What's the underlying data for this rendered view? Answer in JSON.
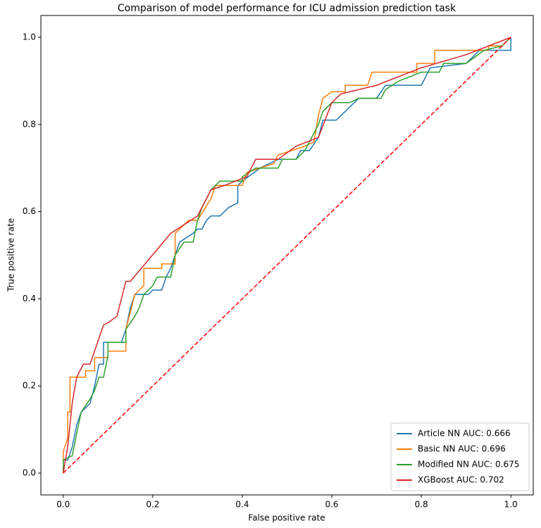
{
  "chart_data": {
    "type": "line",
    "title": "Comparison of model performance for ICU admission prediction task",
    "x_label": "False positive rate",
    "y_label": "True positive rate",
    "xlim": [
      -0.05,
      1.05
    ],
    "ylim": [
      -0.05,
      1.05
    ],
    "xticks": [
      {
        "value": 0,
        "label": "0.0"
      },
      0.2,
      0.4,
      0.6,
      0.8,
      {
        "value": 1,
        "label": "1.0"
      }
    ],
    "yticks": [
      {
        "value": 0,
        "label": "0.0"
      },
      0.2,
      0.4,
      0.6,
      0.8,
      {
        "value": 1,
        "label": "1.0"
      }
    ],
    "legend": "lower right",
    "series": [
      {
        "name": "Article NN AUC: 0.666",
        "color": "#1f77b4",
        "x": [
          0,
          0,
          0.01,
          0.02,
          0.03,
          0.04,
          0.06,
          0.07,
          0.08,
          0.09,
          0.09,
          0.13,
          0.14,
          0.15,
          0.16,
          0.19,
          0.2,
          0.22,
          0.23,
          0.24,
          0.25,
          0.26,
          0.29,
          0.3,
          0.31,
          0.32,
          0.33,
          0.35,
          0.37,
          0.39,
          0.39,
          0.4,
          0.44,
          0.48,
          0.52,
          0.53,
          0.55,
          0.57,
          0.58,
          0.61,
          0.66,
          0.7,
          0.72,
          0.8,
          0.82,
          0.9,
          0.93,
          1,
          1
        ],
        "values": [
          0,
          0.03,
          0.03,
          0.06,
          0.11,
          0.14,
          0.16,
          0.2,
          0.25,
          0.25,
          0.3,
          0.3,
          0.33,
          0.38,
          0.41,
          0.41,
          0.42,
          0.42,
          0.45,
          0.47,
          0.5,
          0.53,
          0.55,
          0.56,
          0.56,
          0.58,
          0.59,
          0.59,
          0.61,
          0.62,
          0.66,
          0.67,
          0.7,
          0.72,
          0.72,
          0.74,
          0.74,
          0.77,
          0.81,
          0.81,
          0.86,
          0.86,
          0.89,
          0.89,
          0.93,
          0.94,
          0.97,
          0.97,
          1
        ]
      },
      {
        "name": "Basic NN AUC: 0.696",
        "color": "#ff7f0e",
        "x": [
          0,
          0,
          0.01,
          0.01,
          0.015,
          0.015,
          0.05,
          0.05,
          0.07,
          0.07,
          0.1,
          0.1,
          0.14,
          0.14,
          0.15,
          0.16,
          0.18,
          0.18,
          0.22,
          0.22,
          0.25,
          0.25,
          0.28,
          0.3,
          0.33,
          0.34,
          0.4,
          0.41,
          0.47,
          0.48,
          0.54,
          0.56,
          0.57,
          0.58,
          0.6,
          0.63,
          0.63,
          0.68,
          0.69,
          0.79,
          0.79,
          0.83,
          0.83,
          0.95,
          0.95,
          0.98,
          1
        ],
        "values": [
          0,
          0.05,
          0.08,
          0.14,
          0.14,
          0.22,
          0.22,
          0.235,
          0.235,
          0.265,
          0.265,
          0.28,
          0.28,
          0.33,
          0.37,
          0.41,
          0.43,
          0.47,
          0.47,
          0.48,
          0.48,
          0.55,
          0.58,
          0.58,
          0.63,
          0.66,
          0.66,
          0.69,
          0.71,
          0.73,
          0.75,
          0.76,
          0.82,
          0.86,
          0.875,
          0.875,
          0.89,
          0.89,
          0.92,
          0.92,
          0.94,
          0.94,
          0.97,
          0.97,
          0.98,
          0.98,
          1
        ]
      },
      {
        "name": "Modified NN AUC: 0.675",
        "color": "#2ca02c",
        "x": [
          0,
          0,
          0.02,
          0.03,
          0.04,
          0.06,
          0.07,
          0.08,
          0.09,
          0.1,
          0.1,
          0.14,
          0.14,
          0.16,
          0.17,
          0.18,
          0.2,
          0.21,
          0.24,
          0.25,
          0.27,
          0.29,
          0.3,
          0.31,
          0.33,
          0.35,
          0.4,
          0.4,
          0.43,
          0.48,
          0.49,
          0.52,
          0.54,
          0.55,
          0.56,
          0.57,
          0.58,
          0.6,
          0.64,
          0.66,
          0.71,
          0.72,
          0.75,
          0.8,
          0.84,
          0.85,
          0.9,
          0.94,
          0.98,
          1
        ],
        "values": [
          0,
          0.03,
          0.04,
          0.09,
          0.14,
          0.17,
          0.19,
          0.22,
          0.22,
          0.27,
          0.3,
          0.3,
          0.33,
          0.36,
          0.38,
          0.41,
          0.43,
          0.45,
          0.45,
          0.5,
          0.53,
          0.53,
          0.58,
          0.61,
          0.65,
          0.67,
          0.67,
          0.68,
          0.7,
          0.7,
          0.72,
          0.72,
          0.74,
          0.76,
          0.78,
          0.8,
          0.83,
          0.85,
          0.85,
          0.86,
          0.86,
          0.88,
          0.9,
          0.92,
          0.92,
          0.94,
          0.94,
          0.97,
          0.98,
          1
        ]
      },
      {
        "name": "XGBoost AUC: 0.702",
        "color": "#d62728",
        "x": [
          0,
          0.005,
          0.01,
          0.02,
          0.03,
          0.045,
          0.06,
          0.09,
          0.1,
          0.12,
          0.14,
          0.15,
          0.24,
          0.3,
          0.33,
          0.36,
          0.41,
          0.43,
          0.48,
          0.52,
          0.57,
          0.6,
          0.62,
          0.7,
          0.8,
          0.9,
          1
        ],
        "values": [
          0,
          0.03,
          0.06,
          0.16,
          0.22,
          0.25,
          0.25,
          0.34,
          0.345,
          0.36,
          0.44,
          0.44,
          0.55,
          0.59,
          0.65,
          0.66,
          0.68,
          0.72,
          0.72,
          0.75,
          0.77,
          0.85,
          0.87,
          0.89,
          0.93,
          0.96,
          1
        ]
      }
    ],
    "diagonal": {
      "x": [
        0,
        1
      ],
      "values": [
        0,
        1
      ],
      "color": "#ff0000",
      "dashed": true
    }
  }
}
